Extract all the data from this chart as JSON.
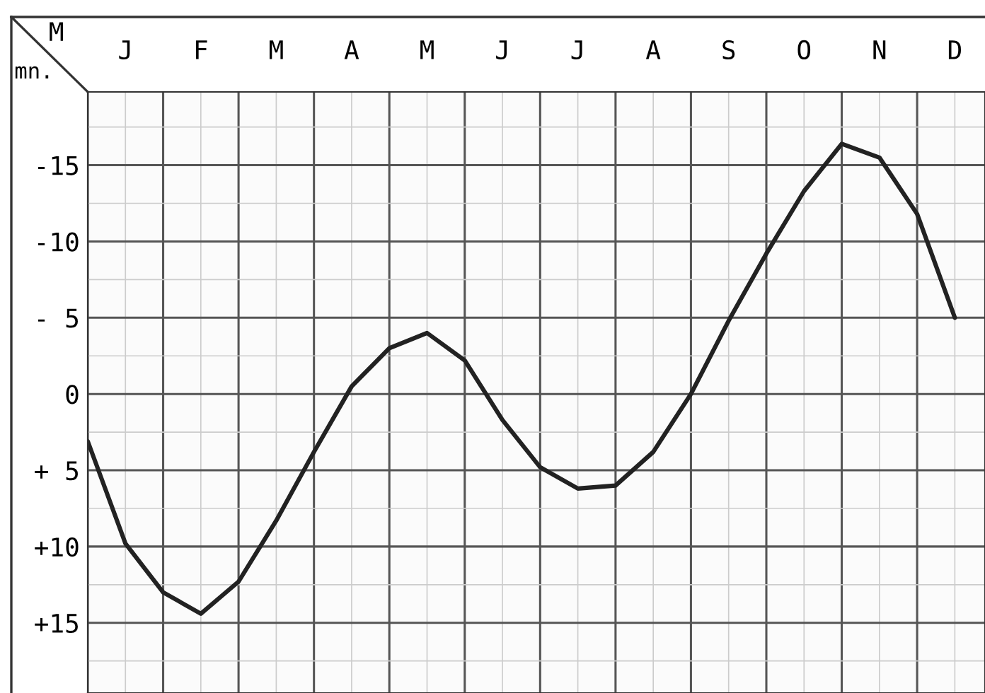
{
  "chart_data": {
    "type": "line",
    "xlabel": "M",
    "ylabel": "mn.",
    "categories": [
      null,
      "J",
      null,
      "F",
      null,
      "M",
      null,
      "A",
      null,
      "M",
      null,
      "J",
      null,
      "J",
      null,
      "A",
      null,
      "S",
      null,
      "O",
      null,
      "N",
      null,
      "D"
    ],
    "series": [
      {
        "color": "#222222",
        "values": [
          3.1,
          9.8,
          13.0,
          14.4,
          12.3,
          8.3,
          3.8,
          -0.5,
          -3.0,
          -4.0,
          -2.2,
          1.7,
          4.8,
          6.2,
          6.0,
          3.8,
          0.0,
          -4.8,
          -9.2,
          -13.3,
          -16.4,
          -15.5,
          -11.8,
          -5.0
        ]
      }
    ],
    "ylim": [
      19.6,
      -19.8
    ],
    "yticks": [
      {
        "value": -15,
        "label": "-15"
      },
      {
        "value": -10,
        "label": "-10"
      },
      {
        "value": -5,
        "label": "- 5"
      },
      0,
      {
        "value": 5,
        "label": "+ 5"
      },
      {
        "value": 10,
        "label": "+10"
      },
      {
        "value": 15,
        "label": "+15"
      }
    ],
    "grid": true,
    "legend": false,
    "marker": "none",
    "line_style": "solid"
  }
}
